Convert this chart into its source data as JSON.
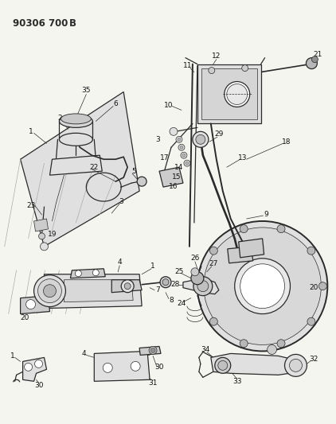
{
  "title": "90306 700 B",
  "bg_color": "#f5f5f0",
  "line_color": "#2a2a2a",
  "fig_width": 4.22,
  "fig_height": 5.33,
  "dpi": 100,
  "lw_main": 0.9,
  "lw_thin": 0.5,
  "label_fs": 6.5,
  "label_color": "#111111"
}
